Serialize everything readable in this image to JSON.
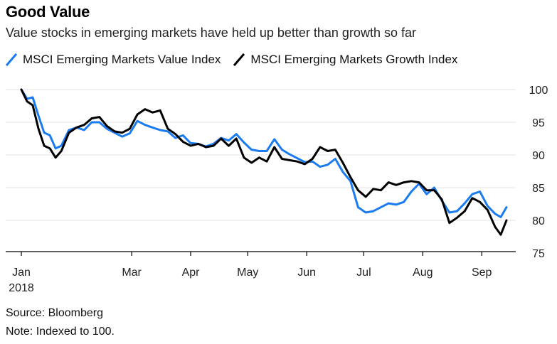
{
  "header": {
    "title": "Good Value",
    "subtitle": "Value stocks in emerging markets have held up better than growth so far"
  },
  "legend": [
    {
      "name": "MSCI Emerging Markets Value Index",
      "color": "#1a7cf0"
    },
    {
      "name": "MSCI Emerging Markets Growth Index",
      "color": "#000000"
    }
  ],
  "footer": {
    "source": "Source: Bloomberg",
    "note": "Note: Indexed to 100."
  },
  "chart_data": {
    "type": "line",
    "title": "Good Value",
    "subtitle": "Value stocks in emerging markets have held up better than growth so far",
    "ylim": [
      75,
      100
    ],
    "yticks": [
      75,
      80,
      85,
      90,
      95,
      100
    ],
    "y_axis_side": "right",
    "grid": true,
    "legend_position": "top-left",
    "x_range": [
      "2018-01-02",
      "2018-09-14"
    ],
    "x_ticks": [
      {
        "date": "2018-01-01",
        "label": "Jan",
        "sublabel": "2018"
      },
      {
        "date": "2018-03-01",
        "label": "Mar"
      },
      {
        "date": "2018-04-01",
        "label": "Apr"
      },
      {
        "date": "2018-05-01",
        "label": "May"
      },
      {
        "date": "2018-06-01",
        "label": "Jun"
      },
      {
        "date": "2018-07-01",
        "label": "Jul"
      },
      {
        "date": "2018-08-01",
        "label": "Aug"
      },
      {
        "date": "2018-09-01",
        "label": "Sep"
      }
    ],
    "series": [
      {
        "name": "MSCI Emerging Markets Value Index",
        "color": "#1a7cf0",
        "points": [
          [
            "2018-01-02",
            100
          ],
          [
            "2018-01-05",
            98.6
          ],
          [
            "2018-01-08",
            98.8
          ],
          [
            "2018-01-11",
            96
          ],
          [
            "2018-01-14",
            93.4
          ],
          [
            "2018-01-17",
            93
          ],
          [
            "2018-01-20",
            91
          ],
          [
            "2018-01-23",
            91.4
          ],
          [
            "2018-01-27",
            93.8
          ],
          [
            "2018-01-31",
            94.2
          ],
          [
            "2018-02-04",
            93.8
          ],
          [
            "2018-02-08",
            95
          ],
          [
            "2018-02-12",
            95
          ],
          [
            "2018-02-16",
            94
          ],
          [
            "2018-02-20",
            93.4
          ],
          [
            "2018-02-24",
            92.8
          ],
          [
            "2018-02-28",
            93.3
          ],
          [
            "2018-03-04",
            95.2
          ],
          [
            "2018-03-08",
            94.6
          ],
          [
            "2018-03-12",
            94.2
          ],
          [
            "2018-03-16",
            93.8
          ],
          [
            "2018-03-20",
            93.6
          ],
          [
            "2018-03-24",
            92.6
          ],
          [
            "2018-03-28",
            93
          ],
          [
            "2018-04-01",
            91.8
          ],
          [
            "2018-04-05",
            91.7
          ],
          [
            "2018-04-09",
            91.3
          ],
          [
            "2018-04-13",
            91.7
          ],
          [
            "2018-04-17",
            92.6
          ],
          [
            "2018-04-21",
            92.2
          ],
          [
            "2018-04-25",
            93.2
          ],
          [
            "2018-04-29",
            91.9
          ],
          [
            "2018-05-03",
            90.8
          ],
          [
            "2018-05-07",
            90.6
          ],
          [
            "2018-05-11",
            90.6
          ],
          [
            "2018-05-15",
            92.4
          ],
          [
            "2018-05-19",
            90.8
          ],
          [
            "2018-05-23",
            90.1
          ],
          [
            "2018-05-27",
            89.5
          ],
          [
            "2018-05-31",
            88.9
          ],
          [
            "2018-06-04",
            89
          ],
          [
            "2018-06-08",
            88.2
          ],
          [
            "2018-06-12",
            88.5
          ],
          [
            "2018-06-16",
            89.4
          ],
          [
            "2018-06-20",
            87.4
          ],
          [
            "2018-06-24",
            86
          ],
          [
            "2018-06-28",
            82
          ],
          [
            "2018-07-02",
            81.2
          ],
          [
            "2018-07-06",
            81.4
          ],
          [
            "2018-07-10",
            82
          ],
          [
            "2018-07-14",
            82.6
          ],
          [
            "2018-07-18",
            82.4
          ],
          [
            "2018-07-22",
            82.8
          ],
          [
            "2018-07-26",
            84.4
          ],
          [
            "2018-07-30",
            85.6
          ],
          [
            "2018-08-03",
            84
          ],
          [
            "2018-08-07",
            85
          ],
          [
            "2018-08-11",
            83
          ],
          [
            "2018-08-15",
            81.2
          ],
          [
            "2018-08-19",
            81.4
          ],
          [
            "2018-08-23",
            82.6
          ],
          [
            "2018-08-27",
            84
          ],
          [
            "2018-08-31",
            84.4
          ],
          [
            "2018-09-04",
            82.2
          ],
          [
            "2018-09-08",
            81
          ],
          [
            "2018-09-11",
            80.5
          ],
          [
            "2018-09-14",
            82
          ]
        ]
      },
      {
        "name": "MSCI Emerging Markets Growth Index",
        "color": "#000000",
        "points": [
          [
            "2018-01-02",
            100
          ],
          [
            "2018-01-05",
            98.2
          ],
          [
            "2018-01-08",
            97.6
          ],
          [
            "2018-01-11",
            94
          ],
          [
            "2018-01-14",
            91.4
          ],
          [
            "2018-01-17",
            91
          ],
          [
            "2018-01-20",
            89.6
          ],
          [
            "2018-01-23",
            90.6
          ],
          [
            "2018-01-27",
            93.4
          ],
          [
            "2018-01-31",
            94.2
          ],
          [
            "2018-02-04",
            94.6
          ],
          [
            "2018-02-08",
            95.6
          ],
          [
            "2018-02-12",
            95.8
          ],
          [
            "2018-02-16",
            94.4
          ],
          [
            "2018-02-20",
            93.6
          ],
          [
            "2018-02-24",
            93.4
          ],
          [
            "2018-02-28",
            94
          ],
          [
            "2018-03-04",
            96.2
          ],
          [
            "2018-03-08",
            97
          ],
          [
            "2018-03-12",
            96.5
          ],
          [
            "2018-03-16",
            96.8
          ],
          [
            "2018-03-20",
            94
          ],
          [
            "2018-03-24",
            93.2
          ],
          [
            "2018-03-28",
            92
          ],
          [
            "2018-04-01",
            91.4
          ],
          [
            "2018-04-05",
            91.7
          ],
          [
            "2018-04-09",
            91.2
          ],
          [
            "2018-04-13",
            91.4
          ],
          [
            "2018-04-17",
            92.5
          ],
          [
            "2018-04-21",
            91.4
          ],
          [
            "2018-04-25",
            92.5
          ],
          [
            "2018-04-29",
            89.6
          ],
          [
            "2018-05-03",
            88.8
          ],
          [
            "2018-05-07",
            89.6
          ],
          [
            "2018-05-11",
            89
          ],
          [
            "2018-05-15",
            91.2
          ],
          [
            "2018-05-19",
            89.4
          ],
          [
            "2018-05-23",
            89.2
          ],
          [
            "2018-05-27",
            89
          ],
          [
            "2018-05-31",
            88.6
          ],
          [
            "2018-06-04",
            89.4
          ],
          [
            "2018-06-08",
            91.2
          ],
          [
            "2018-06-12",
            90.6
          ],
          [
            "2018-06-16",
            90.8
          ],
          [
            "2018-06-20",
            88.8
          ],
          [
            "2018-06-24",
            86.6
          ],
          [
            "2018-06-28",
            84.6
          ],
          [
            "2018-07-02",
            83.6
          ],
          [
            "2018-07-06",
            84.8
          ],
          [
            "2018-07-10",
            84.6
          ],
          [
            "2018-07-14",
            85.8
          ],
          [
            "2018-07-18",
            85.4
          ],
          [
            "2018-07-22",
            85.8
          ],
          [
            "2018-07-26",
            86
          ],
          [
            "2018-07-30",
            85.8
          ],
          [
            "2018-08-03",
            84.6
          ],
          [
            "2018-08-07",
            84.6
          ],
          [
            "2018-08-11",
            83.2
          ],
          [
            "2018-08-15",
            79.6
          ],
          [
            "2018-08-19",
            80.4
          ],
          [
            "2018-08-23",
            81.4
          ],
          [
            "2018-08-27",
            83.4
          ],
          [
            "2018-08-31",
            82.8
          ],
          [
            "2018-09-04",
            81.6
          ],
          [
            "2018-09-08",
            79
          ],
          [
            "2018-09-11",
            77.8
          ],
          [
            "2018-09-14",
            80
          ]
        ]
      }
    ]
  }
}
